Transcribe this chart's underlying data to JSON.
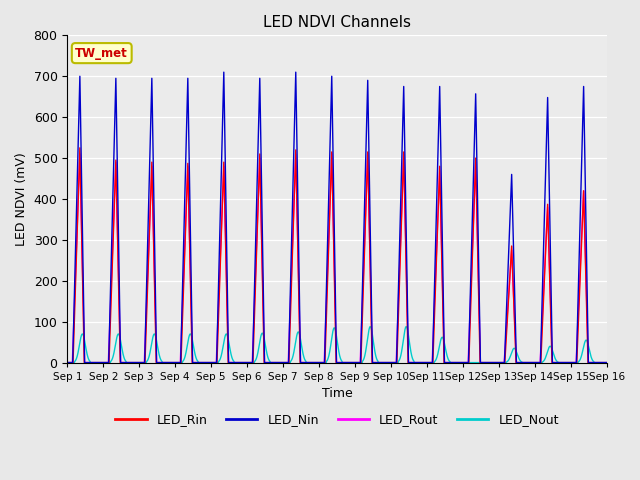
{
  "title": "LED NDVI Channels",
  "xlabel": "Time",
  "ylabel": "LED NDVI (mV)",
  "ylim": [
    0,
    800
  ],
  "fig_bg_color": "#e8e8e8",
  "plot_bg_color": "#ebebeb",
  "annotation_text": "TW_met",
  "annotation_bg": "#ffffcc",
  "annotation_border": "#bbbb00",
  "annotation_text_color": "#cc0000",
  "colors": {
    "LED_Rin": "#ff0000",
    "LED_Nin": "#0000cc",
    "LED_Rout": "#ff00ff",
    "LED_Nout": "#00cccc"
  },
  "num_days": 15,
  "peaks_Nin": [
    700,
    695,
    695,
    695,
    710,
    695,
    710,
    700,
    690,
    675,
    675,
    657,
    460,
    648,
    675
  ],
  "peaks_Rin": [
    525,
    495,
    490,
    487,
    490,
    510,
    520,
    515,
    515,
    515,
    480,
    500,
    285,
    387,
    420
  ],
  "peaks_Rout": [
    510,
    490,
    480,
    480,
    480,
    500,
    510,
    510,
    510,
    510,
    470,
    490,
    275,
    380,
    420
  ],
  "peaks_Nout": [
    70,
    70,
    70,
    70,
    70,
    72,
    75,
    85,
    88,
    88,
    62,
    0,
    35,
    40,
    55
  ],
  "x_ticks": [
    0,
    1,
    2,
    3,
    4,
    5,
    6,
    7,
    8,
    9,
    10,
    11,
    12,
    13,
    14,
    15
  ],
  "x_tick_labels": [
    "Sep 1",
    "Sep 2",
    "Sep 3",
    "Sep 4",
    "Sep 5",
    "Sep 6",
    "Sep 7",
    "Sep 8",
    "Sep 9",
    "Sep 10",
    "Sep 11",
    "Sep 12",
    "Sep 13",
    "Sep 14",
    "Sep 15",
    "Sep 16"
  ],
  "figsize": [
    6.4,
    4.8
  ],
  "dpi": 100
}
